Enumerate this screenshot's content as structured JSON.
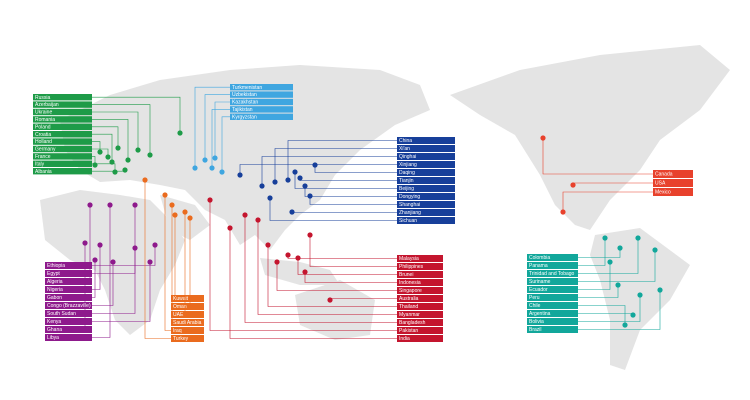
{
  "groups": [
    {
      "color": "#1e9b48",
      "labels": [
        "Russia",
        "Azerbaijan",
        "Ukraine",
        "Romania",
        "Poland",
        "Croatia",
        "Holland",
        "Germany",
        "France",
        "Italy",
        "Albania"
      ]
    },
    {
      "color": "#3fa6e0",
      "labels": [
        "Turkmenistan",
        "Uzbekistan",
        "Kazakhstan",
        "Tajikistan",
        "Kyrgyzstan"
      ]
    },
    {
      "color": "#173f9a",
      "labels": [
        "China",
        "Xi'an",
        "Qinghai",
        "Xinjiang",
        "Daqing",
        "Tianjin",
        "Beijing",
        "Dongying",
        "Shanghai",
        "Zhanjiang",
        "Sichuan"
      ]
    },
    {
      "color": "#8e1a8c",
      "labels": [
        "Ethiopia",
        "Egypt",
        "Algeria",
        "Nigeria",
        "Gabon",
        "Congo (Brazzaville)",
        "South Sudan",
        "Kenya",
        "Ghana",
        "Libya"
      ]
    },
    {
      "color": "#ea6b1e",
      "labels": [
        "Kuwait",
        "Oman",
        "UAE",
        "Saudi Arabia",
        "Iraq",
        "Turkey"
      ]
    },
    {
      "color": "#c4152e",
      "labels": [
        "Malaysia",
        "Philippines",
        "Brunei",
        "Indonesia",
        "Singapore",
        "Australia",
        "Thailand",
        "Myanmar",
        "Bangladesh",
        "Pakistan",
        "India"
      ]
    },
    {
      "color": "#e8412c",
      "labels": [
        "Canada",
        "USA",
        "Mexico"
      ]
    },
    {
      "color": "#12a79b",
      "labels": [
        "Colombia",
        "Panama",
        "Trinidad and Tobago",
        "Suriname",
        "Ecuador",
        "Peru",
        "Chile",
        "Argentina",
        "Bolivia",
        "Brazil"
      ]
    }
  ]
}
